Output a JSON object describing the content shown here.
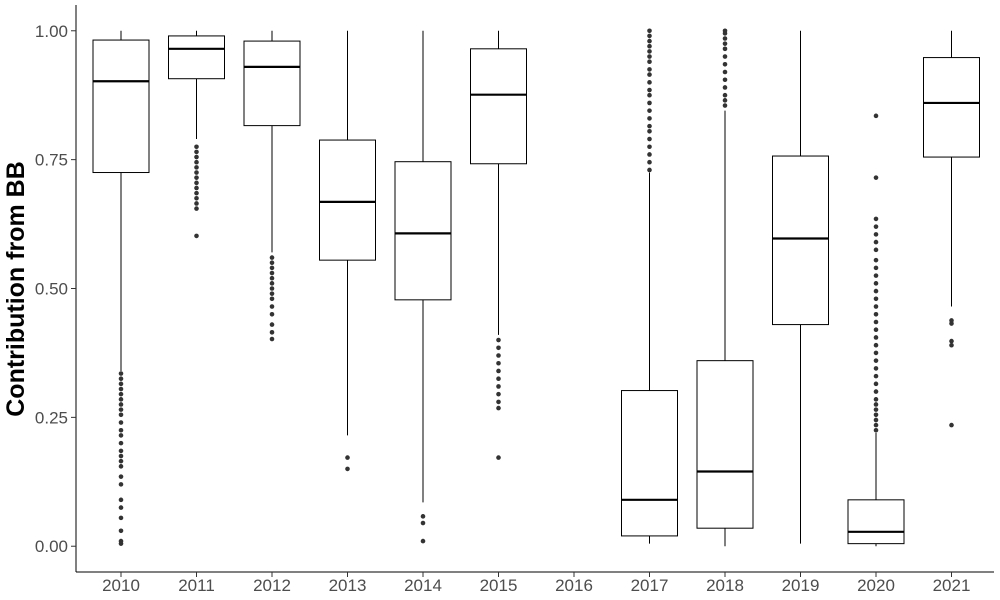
{
  "chart_data": {
    "type": "boxplot",
    "ylabel": "Contribution from BB",
    "xlabel": "",
    "ylim": [
      -0.05,
      1.05
    ],
    "yticks": [
      0.0,
      0.25,
      0.5,
      0.75,
      1.0
    ],
    "ytick_labels": [
      "0.00",
      "0.25",
      "0.50",
      "0.75",
      "1.00"
    ],
    "grid": false,
    "categories": [
      "2010",
      "2011",
      "2012",
      "2013",
      "2014",
      "2015",
      "2016",
      "2017",
      "2018",
      "2019",
      "2020",
      "2021"
    ],
    "boxes": [
      {
        "category": "2010",
        "whisker_low": 0.34,
        "q1": 0.725,
        "median": 0.902,
        "q3": 0.982,
        "whisker_high": 1.0,
        "outliers": [
          0.005,
          0.01,
          0.03,
          0.055,
          0.075,
          0.09,
          0.12,
          0.135,
          0.155,
          0.165,
          0.175,
          0.185,
          0.2,
          0.215,
          0.225,
          0.24,
          0.255,
          0.265,
          0.275,
          0.285,
          0.295,
          0.305,
          0.315,
          0.325,
          0.335
        ]
      },
      {
        "category": "2011",
        "whisker_low": 0.79,
        "q1": 0.907,
        "median": 0.965,
        "q3": 0.99,
        "whisker_high": 1.0,
        "outliers": [
          0.602,
          0.655,
          0.665,
          0.675,
          0.685,
          0.695,
          0.705,
          0.715,
          0.725,
          0.735,
          0.745,
          0.755,
          0.765,
          0.775
        ]
      },
      {
        "category": "2012",
        "whisker_low": 0.57,
        "q1": 0.816,
        "median": 0.93,
        "q3": 0.98,
        "whisker_high": 1.0,
        "outliers": [
          0.402,
          0.415,
          0.43,
          0.45,
          0.465,
          0.48,
          0.49,
          0.5,
          0.51,
          0.52,
          0.53,
          0.54,
          0.55,
          0.56
        ]
      },
      {
        "category": "2013",
        "whisker_low": 0.215,
        "q1": 0.555,
        "median": 0.668,
        "q3": 0.788,
        "whisker_high": 1.0,
        "outliers": [
          0.15,
          0.172
        ]
      },
      {
        "category": "2014",
        "whisker_low": 0.085,
        "q1": 0.478,
        "median": 0.607,
        "q3": 0.746,
        "whisker_high": 1.0,
        "outliers": [
          0.01,
          0.045,
          0.058
        ]
      },
      {
        "category": "2015",
        "whisker_low": 0.41,
        "q1": 0.742,
        "median": 0.876,
        "q3": 0.965,
        "whisker_high": 1.0,
        "outliers": [
          0.172,
          0.268,
          0.28,
          0.295,
          0.31,
          0.325,
          0.34,
          0.355,
          0.37,
          0.385,
          0.4
        ]
      },
      {
        "category": "2016",
        "empty": true
      },
      {
        "category": "2017",
        "whisker_low": 0.005,
        "q1": 0.02,
        "median": 0.09,
        "q3": 0.302,
        "whisker_high": 0.725,
        "outliers": [
          0.73,
          0.745,
          0.76,
          0.775,
          0.79,
          0.805,
          0.815,
          0.83,
          0.845,
          0.86,
          0.875,
          0.885,
          0.9,
          0.915,
          0.925,
          0.94,
          0.95,
          0.96,
          0.97,
          0.98,
          0.99,
          1.0
        ]
      },
      {
        "category": "2018",
        "whisker_low": 0.0,
        "q1": 0.035,
        "median": 0.145,
        "q3": 0.36,
        "whisker_high": 0.845,
        "outliers": [
          0.855,
          0.865,
          0.875,
          0.89,
          0.905,
          0.92,
          0.935,
          0.95,
          0.965,
          0.975,
          0.985,
          0.995,
          1.0
        ]
      },
      {
        "category": "2019",
        "whisker_low": 0.005,
        "q1": 0.43,
        "median": 0.597,
        "q3": 0.757,
        "whisker_high": 1.0,
        "outliers": []
      },
      {
        "category": "2020",
        "whisker_low": 0.0,
        "q1": 0.005,
        "median": 0.028,
        "q3": 0.09,
        "whisker_high": 0.22,
        "outliers": [
          0.225,
          0.235,
          0.245,
          0.255,
          0.265,
          0.275,
          0.285,
          0.3,
          0.315,
          0.33,
          0.345,
          0.36,
          0.375,
          0.39,
          0.405,
          0.42,
          0.435,
          0.45,
          0.465,
          0.48,
          0.495,
          0.51,
          0.525,
          0.54,
          0.555,
          0.575,
          0.59,
          0.605,
          0.62,
          0.635,
          0.715,
          0.835
        ]
      },
      {
        "category": "2021",
        "whisker_low": 0.465,
        "q1": 0.755,
        "median": 0.86,
        "q3": 0.948,
        "whisker_high": 1.0,
        "outliers": [
          0.235,
          0.39,
          0.398,
          0.432,
          0.438
        ]
      }
    ]
  },
  "colors": {
    "background": "#ffffff",
    "box_fill": "#ffffff",
    "box_stroke": "#000000",
    "outlier": "#333333",
    "tick_text": "#4d4d4d",
    "axis_title": "#000000"
  }
}
